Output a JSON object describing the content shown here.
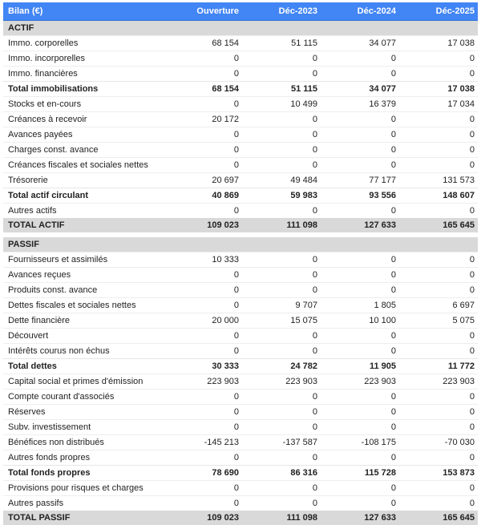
{
  "header": {
    "title": "Bilan (€)",
    "columns": [
      "Ouverture",
      "Déc-2023",
      "Déc-2024",
      "Déc-2025"
    ]
  },
  "actif": {
    "section_label": "ACTIF",
    "rows": [
      {
        "label": "Immo. corporelles",
        "values": [
          "68 154",
          "51 115",
          "34 077",
          "17 038"
        ],
        "kind": "row"
      },
      {
        "label": "Immo. incorporelles",
        "values": [
          "0",
          "0",
          "0",
          "0"
        ],
        "kind": "row"
      },
      {
        "label": "Immo. financières",
        "values": [
          "0",
          "0",
          "0",
          "0"
        ],
        "kind": "row"
      },
      {
        "label": "Total immobilisations",
        "values": [
          "68 154",
          "51 115",
          "34 077",
          "17 038"
        ],
        "kind": "total"
      },
      {
        "label": "Stocks et en-cours",
        "values": [
          "0",
          "10 499",
          "16 379",
          "17 034"
        ],
        "kind": "row"
      },
      {
        "label": "Créances à recevoir",
        "values": [
          "20 172",
          "0",
          "0",
          "0"
        ],
        "kind": "row"
      },
      {
        "label": "Avances payées",
        "values": [
          "0",
          "0",
          "0",
          "0"
        ],
        "kind": "row"
      },
      {
        "label": "Charges const. avance",
        "values": [
          "0",
          "0",
          "0",
          "0"
        ],
        "kind": "row"
      },
      {
        "label": "Créances fiscales et sociales nettes",
        "values": [
          "0",
          "0",
          "0",
          "0"
        ],
        "kind": "row"
      },
      {
        "label": "Trésorerie",
        "values": [
          "20 697",
          "49 484",
          "77 177",
          "131 573"
        ],
        "kind": "row"
      },
      {
        "label": "Total actif circulant",
        "values": [
          "40 869",
          "59 983",
          "93 556",
          "148 607"
        ],
        "kind": "total"
      },
      {
        "label": "Autres actifs",
        "values": [
          "0",
          "0",
          "0",
          "0"
        ],
        "kind": "row"
      },
      {
        "label": "TOTAL ACTIF",
        "values": [
          "109 023",
          "111 098",
          "127 633",
          "165 645"
        ],
        "kind": "grand"
      }
    ]
  },
  "passif": {
    "section_label": "PASSIF",
    "rows": [
      {
        "label": "Fournisseurs et assimilés",
        "values": [
          "10 333",
          "0",
          "0",
          "0"
        ],
        "kind": "row"
      },
      {
        "label": "Avances reçues",
        "values": [
          "0",
          "0",
          "0",
          "0"
        ],
        "kind": "row"
      },
      {
        "label": "Produits const. avance",
        "values": [
          "0",
          "0",
          "0",
          "0"
        ],
        "kind": "row"
      },
      {
        "label": "Dettes fiscales et sociales nettes",
        "values": [
          "0",
          "9 707",
          "1 805",
          "6 697"
        ],
        "kind": "row"
      },
      {
        "label": "Dette financière",
        "values": [
          "20 000",
          "15 075",
          "10 100",
          "5 075"
        ],
        "kind": "row"
      },
      {
        "label": "Découvert",
        "values": [
          "0",
          "0",
          "0",
          "0"
        ],
        "kind": "row"
      },
      {
        "label": "Intérêts courus non échus",
        "values": [
          "0",
          "0",
          "0",
          "0"
        ],
        "kind": "row"
      },
      {
        "label": "Total dettes",
        "values": [
          "30 333",
          "24 782",
          "11 905",
          "11 772"
        ],
        "kind": "total"
      },
      {
        "label": "Capital social et primes d'émission",
        "values": [
          "223 903",
          "223 903",
          "223 903",
          "223 903"
        ],
        "kind": "row"
      },
      {
        "label": "Compte courant d'associés",
        "values": [
          "0",
          "0",
          "0",
          "0"
        ],
        "kind": "row"
      },
      {
        "label": "Réserves",
        "values": [
          "0",
          "0",
          "0",
          "0"
        ],
        "kind": "row"
      },
      {
        "label": "Subv. investissement",
        "values": [
          "0",
          "0",
          "0",
          "0"
        ],
        "kind": "row"
      },
      {
        "label": "Bénéfices non distribués",
        "values": [
          "-145 213",
          "-137 587",
          "-108 175",
          "-70 030"
        ],
        "kind": "row"
      },
      {
        "label": "Autres fonds propres",
        "values": [
          "0",
          "0",
          "0",
          "0"
        ],
        "kind": "row"
      },
      {
        "label": "Total fonds propres",
        "values": [
          "78 690",
          "86 316",
          "115 728",
          "153 873"
        ],
        "kind": "total"
      },
      {
        "label": "Provisions pour risques et charges",
        "values": [
          "0",
          "0",
          "0",
          "0"
        ],
        "kind": "row"
      },
      {
        "label": "Autres passifs",
        "values": [
          "0",
          "0",
          "0",
          "0"
        ],
        "kind": "row"
      },
      {
        "label": "TOTAL PASSIF",
        "values": [
          "109 023",
          "111 098",
          "127 633",
          "165 645"
        ],
        "kind": "grand"
      }
    ]
  },
  "colors": {
    "header_bg": "#4285f4",
    "header_text": "#ffffff",
    "section_bg": "#d9d9d9"
  }
}
